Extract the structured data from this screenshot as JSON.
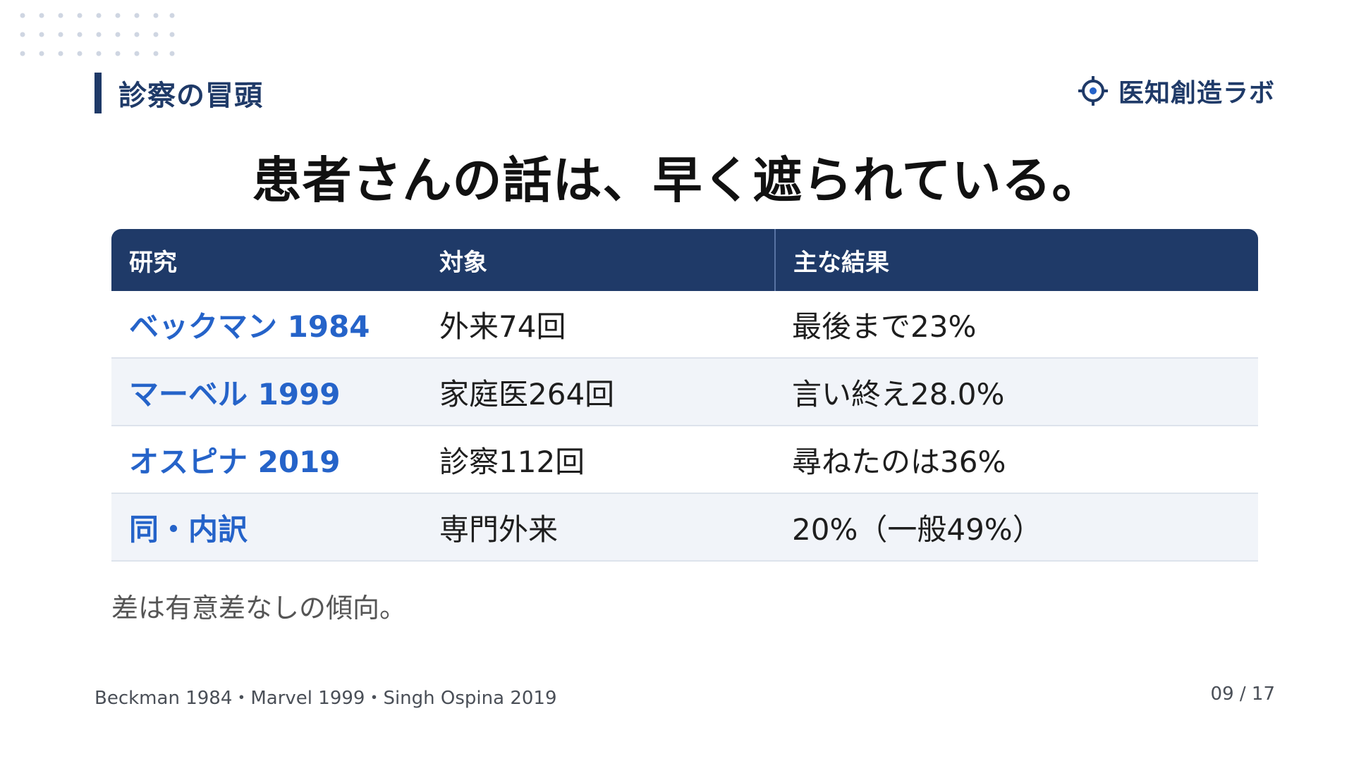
{
  "section": {
    "label": "診察の冒頭"
  },
  "brand": {
    "name": "医知創造ラボ",
    "icon": "crosshair-icon"
  },
  "headline": "患者さんの話は、早く遮られている。",
  "table": {
    "headers": [
      "研究",
      "対象",
      "主な結果"
    ],
    "rows": [
      {
        "study": "ベックマン 1984",
        "subject": "外来74回",
        "result": "最後まで23%"
      },
      {
        "study": "マーベル 1999",
        "subject": "家庭医264回",
        "result": "言い終え28.0%"
      },
      {
        "study": "オスピナ 2019",
        "subject": "診察112回",
        "result": "尋ねたのは36%"
      },
      {
        "study": "同・内訳",
        "subject": "専門外来",
        "result": "20%（一般49%）"
      }
    ]
  },
  "note": "差は有意差なしの傾向。",
  "footer": {
    "citations": "Beckman 1984・Marvel 1999・Singh Ospina 2019",
    "page": "09 / 17"
  },
  "colors": {
    "navy": "#1f3a68",
    "accent_blue": "#2563c9",
    "row_alt": "#f1f4f9"
  }
}
